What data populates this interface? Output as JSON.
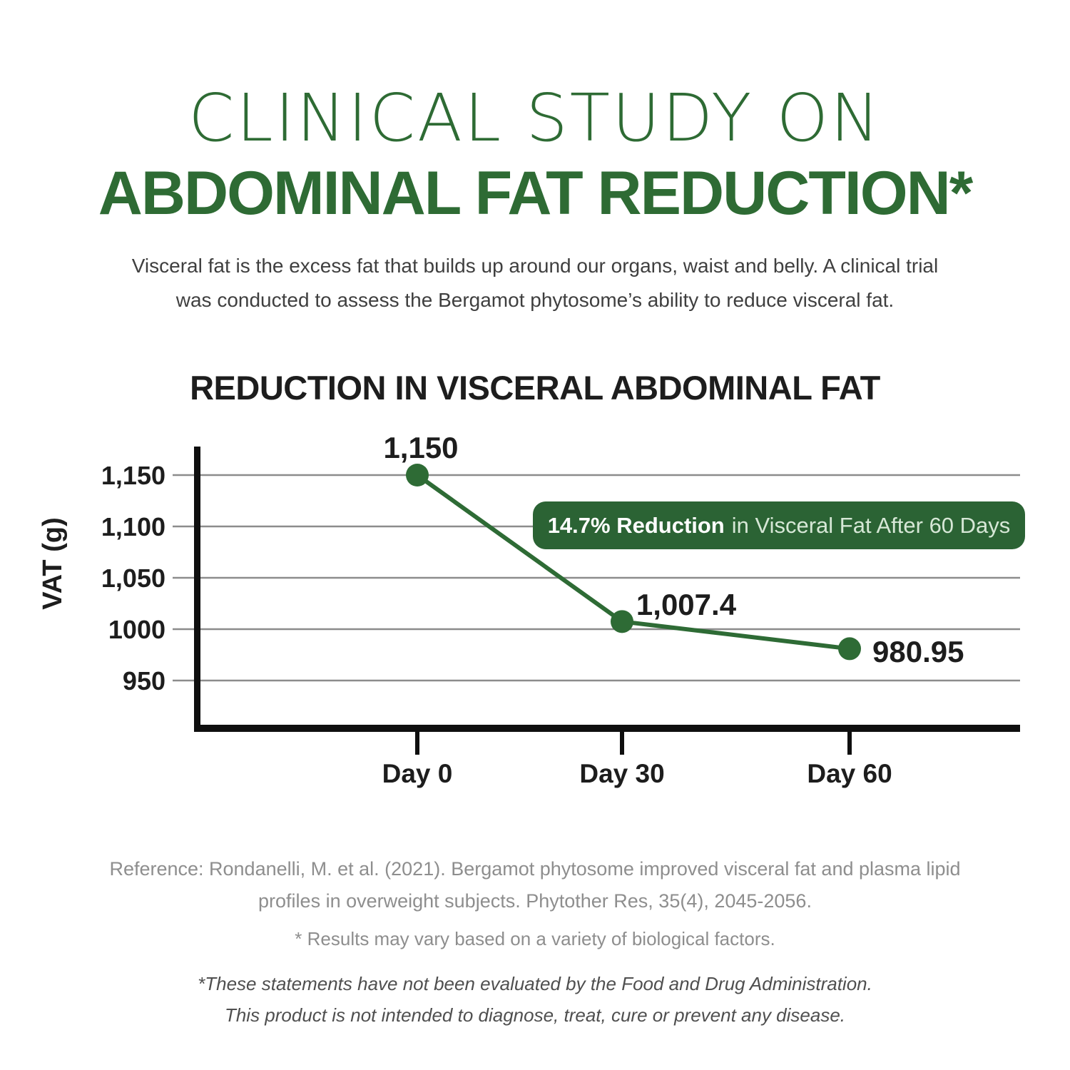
{
  "header": {
    "title_line1": "CLINICAL STUDY ON",
    "title_line2": "ABDOMINAL FAT REDUCTION*",
    "intro_line1": "Visceral fat is the excess fat that builds up around our organs, waist and belly. A clinical trial",
    "intro_line2": "was conducted to assess the Bergamot phytosome’s ability to reduce visceral fat."
  },
  "chart_data": {
    "type": "line",
    "title": "REDUCTION IN VISCERAL ABDOMINAL FAT",
    "ylabel": "VAT (g)",
    "xlabel": "",
    "categories": [
      "Day 0",
      "Day 30",
      "Day 60"
    ],
    "values": [
      1150,
      1007.4,
      980.95
    ],
    "point_labels": [
      "1,150",
      "1,007.4",
      "980.95"
    ],
    "y_ticks": [
      {
        "value": 1150,
        "label": "1,150"
      },
      {
        "value": 1100,
        "label": "1,100"
      },
      {
        "value": 1050,
        "label": "1,050"
      },
      {
        "value": 1000,
        "label": "1000"
      },
      {
        "value": 950,
        "label": "950"
      }
    ],
    "ylim": [
      900,
      1185
    ],
    "grid": true,
    "legend_position": "none",
    "annotation": {
      "bold": "14.7% Reduction",
      "rest": "in Visceral Fat After 60 Days"
    },
    "line_color": "#2e6b35",
    "marker_color": "#2e6b35"
  },
  "colors": {
    "brand_green": "#2e6b34",
    "badge_green": "#2b6334",
    "grid_gray": "#8c8c8c",
    "axis_black": "#0f0f0f",
    "heading_text": "#1d1d1d",
    "body_text": "#3f3f3f",
    "muted_text": "#8e8e8e",
    "disclaimer_text": "#4f4f4f"
  },
  "footer": {
    "reference_line1": "Reference: Rondanelli, M. et al. (2021). Bergamot phytosome improved visceral fat and plasma lipid",
    "reference_line2": "profiles in overweight subjects. Phytother Res, 35(4), 2045-2056.",
    "results_note": "* Results may vary based on a variety of biological factors.",
    "fda_line1": "*These statements have not been evaluated by the Food and Drug Administration.",
    "fda_line2": "This product is not intended to diagnose, treat, cure or prevent any disease."
  }
}
